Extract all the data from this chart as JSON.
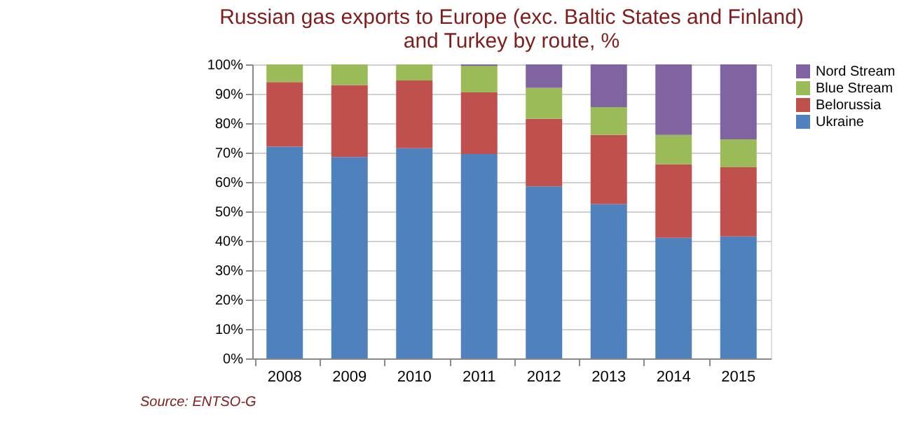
{
  "chart_data": {
    "type": "bar",
    "stacked": true,
    "title": [
      "Russian gas exports to Europe (exc. Baltic States and Finland)",
      "and Turkey by route, %"
    ],
    "categories": [
      "2008",
      "2009",
      "2010",
      "2011",
      "2012",
      "2013",
      "2014",
      "2015"
    ],
    "series": [
      {
        "name": "Ukraine",
        "color": "#4f81bd",
        "values": [
          72,
          68.5,
          71.5,
          69.5,
          58.5,
          52.5,
          41,
          41.5
        ]
      },
      {
        "name": "Belorussia",
        "color": "#c0504d",
        "values": [
          22,
          24.5,
          23,
          21,
          23,
          23.5,
          25,
          23.5
        ]
      },
      {
        "name": "Blue Stream",
        "color": "#9bbb59",
        "values": [
          6,
          7,
          5.5,
          9,
          10.5,
          9.5,
          10,
          9.5
        ]
      },
      {
        "name": "Nord Stream",
        "color": "#8064a2",
        "values": [
          0,
          0,
          0,
          0.5,
          8,
          14.5,
          24,
          25.5
        ]
      }
    ],
    "ylim": [
      0,
      100
    ],
    "yticks": [
      {
        "value": 0,
        "label": "0%"
      },
      {
        "value": 10,
        "label": "10%"
      },
      {
        "value": 20,
        "label": "20%"
      },
      {
        "value": 30,
        "label": "30%"
      },
      {
        "value": 40,
        "label": "40%"
      },
      {
        "value": 50,
        "label": "50%"
      },
      {
        "value": 60,
        "label": "60%"
      },
      {
        "value": 70,
        "label": "70%"
      },
      {
        "value": 80,
        "label": "80%"
      },
      {
        "value": 90,
        "label": "90%"
      },
      {
        "value": 100,
        "label": "100%"
      }
    ],
    "grid": "y",
    "legend": "right",
    "annotations": [
      "Source: ENTSO-G"
    ]
  }
}
